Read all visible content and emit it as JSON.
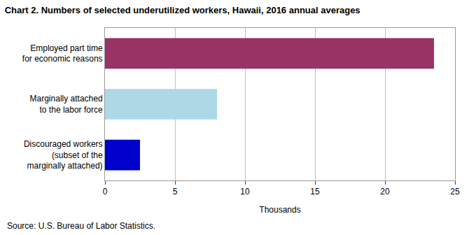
{
  "chart_data": {
    "type": "bar",
    "orientation": "horizontal",
    "title": "Chart 2. Numbers of selected underutilized workers, Hawaii, 2016 annual averages",
    "categories": [
      "Discouraged workers\n(subset of the\nmarginally attached)",
      "Marginally attached\nto the labor force",
      "Employed part time\nfor economic reasons"
    ],
    "values": [
      2.5,
      8.0,
      23.5
    ],
    "colors": [
      "#0000CC",
      "#ADD8E6",
      "#993366"
    ],
    "x_label": "Thousands",
    "xlim": [
      0,
      25
    ],
    "xticks": [
      0,
      5,
      10,
      15,
      20,
      25
    ],
    "grid": true,
    "annotations": [
      "Source: U.S. Bureau of Labor Statistics."
    ]
  }
}
